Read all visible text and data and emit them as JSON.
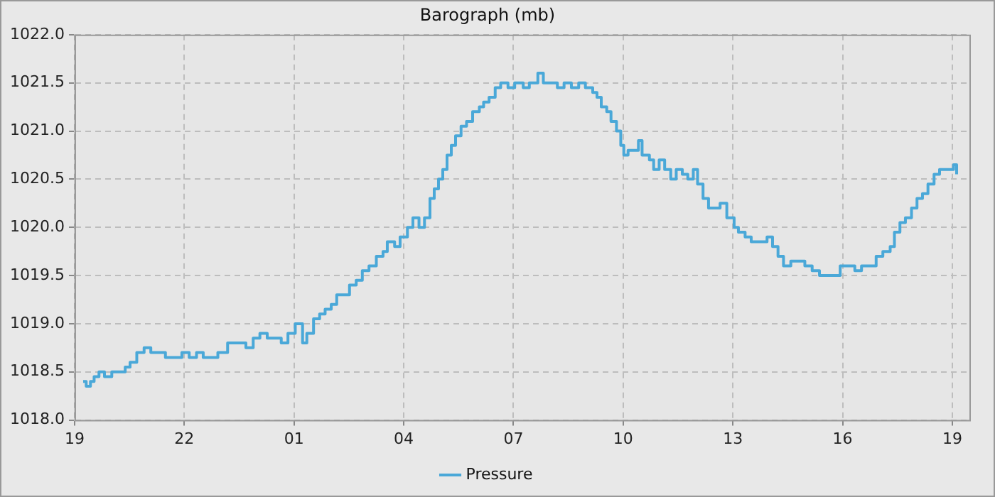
{
  "chart_data": {
    "type": "step",
    "title": "Barograph (mb)",
    "x": [
      "--01-01T19:14",
      "--01-01T19:19",
      "--01-01T19:26",
      "--01-01T19:32",
      "--01-01T19:40",
      "--01-01T19:49",
      "--01-01T20:01",
      "--01-01T20:12",
      "--01-01T20:23",
      "--01-01T20:31",
      "--01-01T20:42",
      "--01-01T20:54",
      "--01-01T21:05",
      "--01-01T21:22",
      "--01-01T21:29",
      "--01-01T21:45",
      "--01-01T21:56",
      "--01-01T22:08",
      "--01-01T22:20",
      "--01-01T22:31",
      "--01-01T22:55",
      "--01-01T23:11",
      "--01-01T23:29",
      "--01-01T23:41",
      "--01-01T23:53",
      "--01-02T00:04",
      "--01-02T00:16",
      "--01-02T00:39",
      "--01-02T00:50",
      "--01-02T01:02",
      "--01-02T01:14",
      "--01-02T01:21",
      "--01-02T01:32",
      "--01-02T01:42",
      "--01-02T01:51",
      "--01-02T02:01",
      "--01-02T02:10",
      "--01-02T02:19",
      "--01-02T02:31",
      "--01-02T02:42",
      "--01-02T02:52",
      "--01-02T03:03",
      "--01-02T03:15",
      "--01-02T03:26",
      "--01-02T03:33",
      "--01-02T03:45",
      "--01-02T03:54",
      "--01-02T04:06",
      "--01-02T04:15",
      "--01-02T04:25",
      "--01-02T04:34",
      "--01-02T04:43",
      "--01-02T04:50",
      "--01-02T04:57",
      "--01-02T05:04",
      "--01-02T05:11",
      "--01-02T05:18",
      "--01-02T05:25",
      "--01-02T05:34",
      "--01-02T05:43",
      "--01-02T05:53",
      "--01-02T06:04",
      "--01-02T06:11",
      "--01-02T06:20",
      "--01-02T06:30",
      "--01-02T06:39",
      "--01-02T06:51",
      "--01-02T07:02",
      "--01-02T07:16",
      "--01-02T07:26",
      "--01-02T07:40",
      "--01-02T07:49",
      "--01-02T08:01",
      "--01-02T08:12",
      "--01-02T08:23",
      "--01-02T08:35",
      "--01-02T08:47",
      "--01-02T08:58",
      "--01-02T09:10",
      "--01-02T09:17",
      "--01-02T09:24",
      "--01-02T09:33",
      "--01-02T09:40",
      "--01-02T09:49",
      "--01-02T09:56",
      "--01-02T10:01",
      "--01-02T10:08",
      "--01-02T10:17",
      "--01-02T10:25",
      "--01-02T10:31",
      "--01-02T10:43",
      "--01-02T10:50",
      "--01-02T10:59",
      "--01-02T11:08",
      "--01-02T11:18",
      "--01-02T11:27",
      "--01-02T11:37",
      "--01-02T11:46",
      "--01-02T11:55",
      "--01-02T12:02",
      "--01-02T12:11",
      "--01-02T12:20",
      "--01-02T12:28",
      "--01-02T12:39",
      "--01-02T12:50",
      "--01-02T13:02",
      "--01-02T13:09",
      "--01-02T13:20",
      "--01-02T13:30",
      "--01-02T13:41",
      "--01-02T13:56",
      "--01-02T14:05",
      "--01-02T14:14",
      "--01-02T14:23",
      "--01-02T14:35",
      "--01-02T14:47",
      "--01-02T14:58",
      "--01-02T15:10",
      "--01-02T15:22",
      "--01-02T15:38",
      "--01-02T15:56",
      "--01-02T16:20",
      "--01-02T16:31",
      "--01-02T16:43",
      "--01-02T16:55",
      "--01-02T17:06",
      "--01-02T17:18",
      "--01-02T17:25",
      "--01-02T17:34",
      "--01-02T17:43",
      "--01-02T17:53",
      "--01-02T18:02",
      "--01-02T18:11",
      "--01-02T18:20",
      "--01-02T18:30",
      "--01-02T18:39",
      "--01-02T18:51",
      "--01-02T19:02",
      "--01-02T19:07"
    ],
    "series": [
      {
        "name": "Pressure",
        "color": "#4aa8d8",
        "values": [
          1018.4,
          1018.35,
          1018.4,
          1018.45,
          1018.5,
          1018.45,
          1018.5,
          1018.5,
          1018.55,
          1018.6,
          1018.7,
          1018.75,
          1018.7,
          1018.7,
          1018.65,
          1018.65,
          1018.7,
          1018.65,
          1018.7,
          1018.65,
          1018.7,
          1018.8,
          1018.8,
          1018.75,
          1018.85,
          1018.9,
          1018.85,
          1018.8,
          1018.9,
          1019.0,
          1018.8,
          1018.9,
          1019.05,
          1019.1,
          1019.15,
          1019.2,
          1019.3,
          1019.3,
          1019.4,
          1019.45,
          1019.55,
          1019.6,
          1019.7,
          1019.75,
          1019.85,
          1019.8,
          1019.9,
          1020.0,
          1020.1,
          1020.0,
          1020.1,
          1020.3,
          1020.4,
          1020.5,
          1020.6,
          1020.75,
          1020.85,
          1020.95,
          1021.05,
          1021.1,
          1021.2,
          1021.25,
          1021.3,
          1021.35,
          1021.45,
          1021.5,
          1021.45,
          1021.5,
          1021.45,
          1021.5,
          1021.6,
          1021.5,
          1021.5,
          1021.45,
          1021.5,
          1021.45,
          1021.5,
          1021.45,
          1021.4,
          1021.35,
          1021.25,
          1021.2,
          1021.1,
          1021.0,
          1020.85,
          1020.75,
          1020.8,
          1020.8,
          1020.9,
          1020.75,
          1020.7,
          1020.6,
          1020.7,
          1020.6,
          1020.5,
          1020.6,
          1020.55,
          1020.5,
          1020.6,
          1020.45,
          1020.3,
          1020.2,
          1020.2,
          1020.25,
          1020.1,
          1020.0,
          1019.95,
          1019.9,
          1019.85,
          1019.85,
          1019.9,
          1019.8,
          1019.7,
          1019.6,
          1019.65,
          1019.65,
          1019.6,
          1019.55,
          1019.5,
          1019.5,
          1019.6,
          1019.55,
          1019.6,
          1019.6,
          1019.7,
          1019.75,
          1019.8,
          1019.95,
          1020.05,
          1020.1,
          1020.2,
          1020.3,
          1020.35,
          1020.45,
          1020.55,
          1020.6,
          1020.6,
          1020.65,
          1020.55
        ]
      }
    ],
    "xlim": [
      "--01-01T19:00",
      "--01-02T19:28"
    ],
    "xticks": [
      {
        "value": "--01-01T19:00",
        "label": "19"
      },
      {
        "value": "--01-01T22:00",
        "label": "22"
      },
      {
        "value": "--01-02T01:00",
        "label": "01"
      },
      {
        "value": "--01-02T04:00",
        "label": "04"
      },
      {
        "value": "--01-02T07:00",
        "label": "07"
      },
      {
        "value": "--01-02T10:00",
        "label": "10"
      },
      {
        "value": "--01-02T13:00",
        "label": "13"
      },
      {
        "value": "--01-02T16:00",
        "label": "16"
      },
      {
        "value": "--01-02T19:00",
        "label": "19"
      }
    ],
    "ylim": [
      1018,
      1022
    ],
    "yticks": [
      {
        "value": 1018,
        "label": "1018.0"
      },
      {
        "value": 1018.5,
        "label": "1018.5"
      },
      {
        "value": 1019,
        "label": "1019.0"
      },
      {
        "value": 1019.5,
        "label": "1019.5"
      },
      {
        "value": 1020,
        "label": "1020.0"
      },
      {
        "value": 1020.5,
        "label": "1020.5"
      },
      {
        "value": 1021,
        "label": "1021.0"
      },
      {
        "value": 1021.5,
        "label": "1021.5"
      },
      {
        "value": 1022,
        "label": "1022.0"
      }
    ],
    "grid": true,
    "legend": "bottom",
    "marker": "none",
    "line_style": "solid"
  }
}
